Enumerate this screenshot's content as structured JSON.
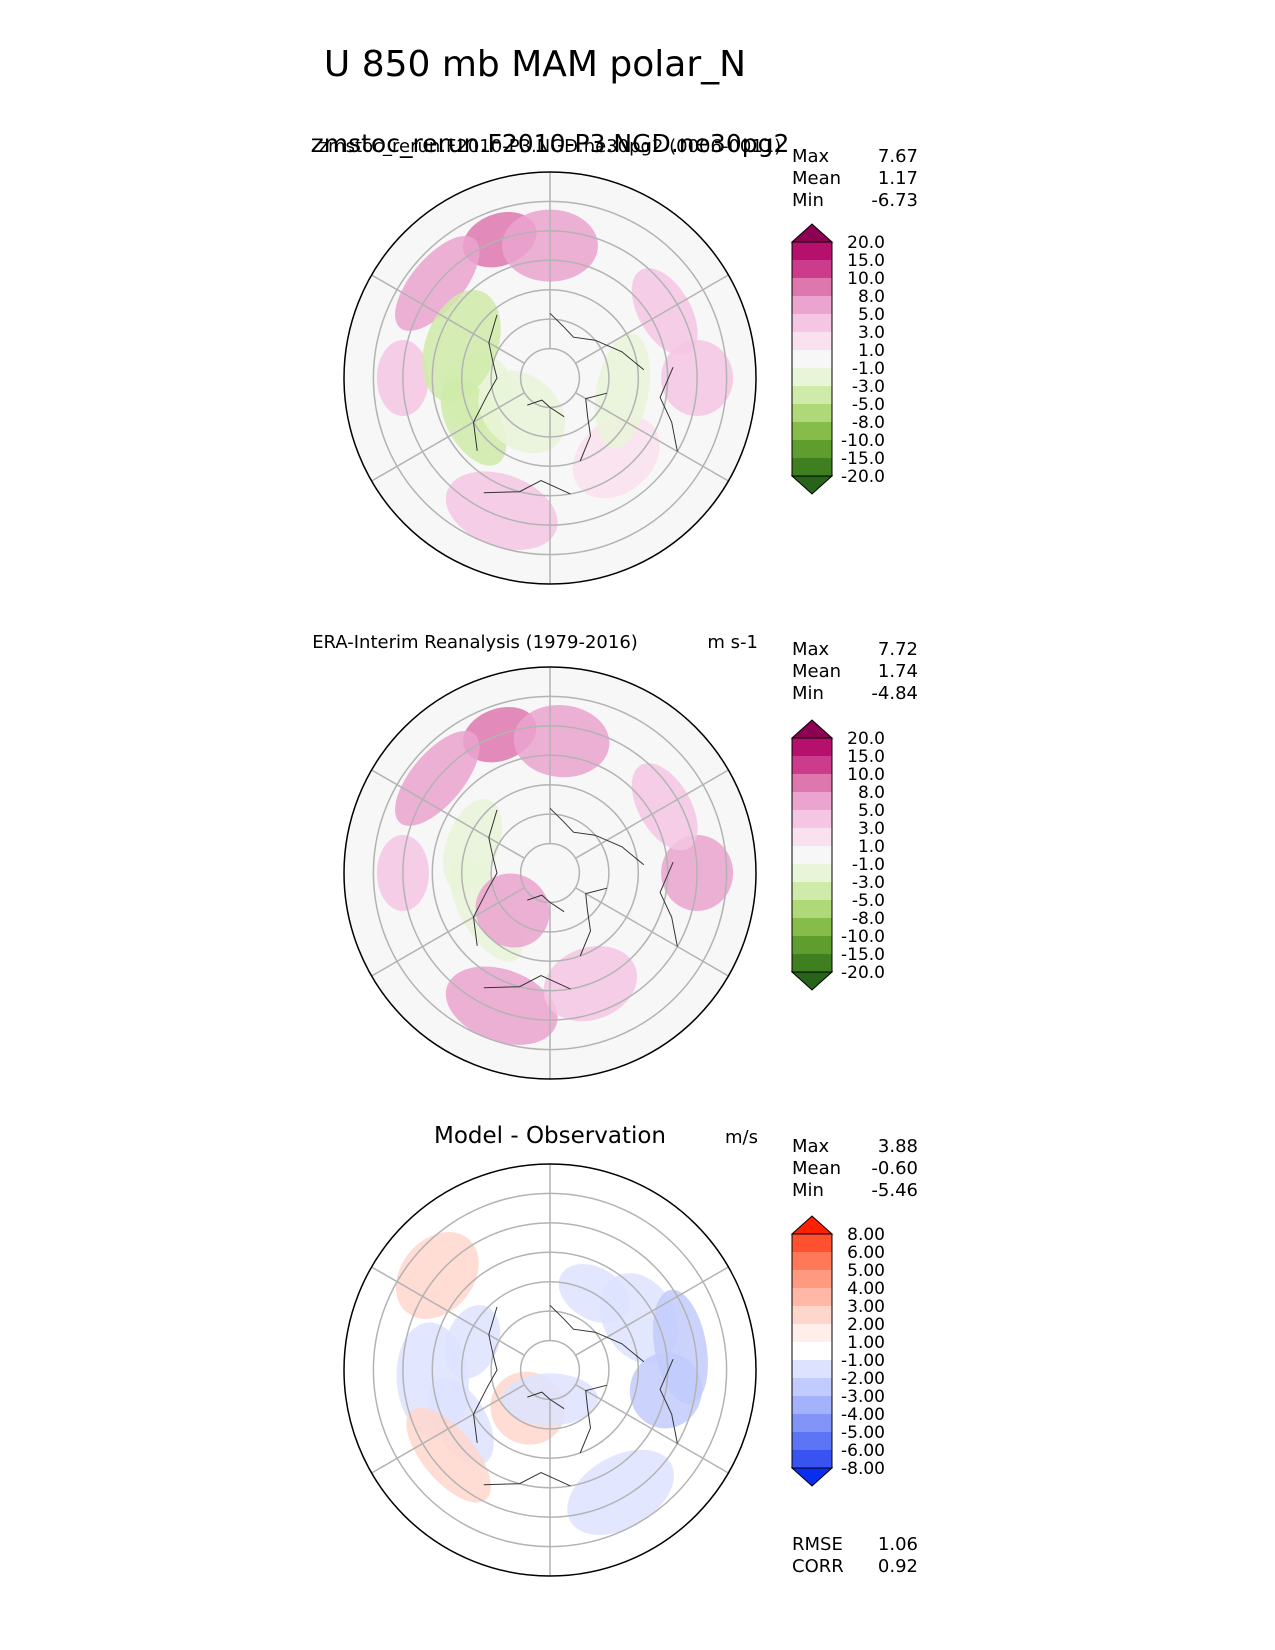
{
  "figure": {
    "title": "U 850 mb MAM polar_N"
  },
  "chart_data": [
    {
      "type": "heatmap",
      "panel": "test",
      "title": "zmstoc_rerun.F2010-P3.NGD.ne30pg2",
      "subtitle_overlap": "zmstoc_rerun.F2010-P3.NGD.ne30pg2 (0006-0011)",
      "units": "",
      "projection": "north-polar-stereographic",
      "stats": [
        {
          "label": "Max",
          "value": "7.67"
        },
        {
          "label": "Mean",
          "value": "1.17"
        },
        {
          "label": "Min",
          "value": "-6.73"
        }
      ],
      "colorbar": {
        "levels": [
          "20.0",
          "15.0",
          "10.0",
          "8.0",
          "5.0",
          "3.0",
          "1.0",
          "-1.0",
          "-3.0",
          "-5.0",
          "-8.0",
          "-10.0",
          "-15.0",
          "-20.0"
        ],
        "colors": [
          "#8e0152",
          "#b5106c",
          "#cc3c8c",
          "#de77ae",
          "#eba3cf",
          "#f4c6e3",
          "#fae1ef",
          "#f7f7f7",
          "#e9f5d8",
          "#cfeba9",
          "#afd978",
          "#86bd4a",
          "#5f9e2e",
          "#3f7f1f",
          "#276419"
        ]
      },
      "field": [
        {
          "lat": 40,
          "lon": 200,
          "value": 7.5,
          "color": "#de77ae"
        },
        {
          "lat": 45,
          "lon": 180,
          "value": 6.0,
          "color": "#eba3cf"
        },
        {
          "lat": 40,
          "lon": 230,
          "value": 6.5,
          "color": "#eba3cf"
        },
        {
          "lat": 40,
          "lon": 90,
          "value": 4.5,
          "color": "#f4c6e3"
        },
        {
          "lat": 45,
          "lon": 120,
          "value": 4.0,
          "color": "#f4c6e3"
        },
        {
          "lat": 42,
          "lon": 340,
          "value": 5.5,
          "color": "#f4c6e3"
        },
        {
          "lat": 40,
          "lon": 270,
          "value": 3.5,
          "color": "#f4c6e3"
        },
        {
          "lat": 55,
          "lon": 40,
          "value": 2.0,
          "color": "#fae1ef"
        },
        {
          "lat": 65,
          "lon": 80,
          "value": -2.0,
          "color": "#e9f5d8"
        },
        {
          "lat": 65,
          "lon": 280,
          "value": -2.5,
          "color": "#e9f5d8"
        },
        {
          "lat": 60,
          "lon": 300,
          "value": -4.0,
          "color": "#cfeba9"
        },
        {
          "lat": 58,
          "lon": 250,
          "value": -3.5,
          "color": "#cfeba9"
        },
        {
          "lat": 70,
          "lon": 160,
          "value": 0.0,
          "color": "#f7f7f7"
        },
        {
          "lat": 75,
          "lon": 320,
          "value": -1.5,
          "color": "#e9f5d8"
        }
      ]
    },
    {
      "type": "heatmap",
      "panel": "reference",
      "title": "ERA-Interim Reanalysis (1979-2016)",
      "units": "m s-1",
      "projection": "north-polar-stereographic",
      "stats": [
        {
          "label": "Max",
          "value": "7.72"
        },
        {
          "label": "Mean",
          "value": "1.74"
        },
        {
          "label": "Min",
          "value": "-4.84"
        }
      ],
      "colorbar": {
        "levels": [
          "20.0",
          "15.0",
          "10.0",
          "8.0",
          "5.0",
          "3.0",
          "1.0",
          "-1.0",
          "-3.0",
          "-5.0",
          "-8.0",
          "-10.0",
          "-15.0",
          "-20.0"
        ],
        "colors": [
          "#8e0152",
          "#b5106c",
          "#cc3c8c",
          "#de77ae",
          "#eba3cf",
          "#f4c6e3",
          "#fae1ef",
          "#f7f7f7",
          "#e9f5d8",
          "#cfeba9",
          "#afd978",
          "#86bd4a",
          "#5f9e2e",
          "#3f7f1f",
          "#276419"
        ]
      },
      "field": [
        {
          "lat": 40,
          "lon": 200,
          "value": 7.7,
          "color": "#de77ae"
        },
        {
          "lat": 45,
          "lon": 175,
          "value": 6.5,
          "color": "#eba3cf"
        },
        {
          "lat": 40,
          "lon": 230,
          "value": 6.5,
          "color": "#eba3cf"
        },
        {
          "lat": 40,
          "lon": 90,
          "value": 5.0,
          "color": "#eba3cf"
        },
        {
          "lat": 45,
          "lon": 120,
          "value": 4.5,
          "color": "#f4c6e3"
        },
        {
          "lat": 42,
          "lon": 340,
          "value": 6.0,
          "color": "#eba3cf"
        },
        {
          "lat": 40,
          "lon": 270,
          "value": 4.0,
          "color": "#f4c6e3"
        },
        {
          "lat": 50,
          "lon": 20,
          "value": 3.5,
          "color": "#f4c6e3"
        },
        {
          "lat": 65,
          "lon": 300,
          "value": -2.0,
          "color": "#e9f5d8"
        },
        {
          "lat": 72,
          "lon": 315,
          "value": 4.0,
          "color": "#eba3cf"
        },
        {
          "lat": 62,
          "lon": 250,
          "value": -1.5,
          "color": "#e9f5d8"
        },
        {
          "lat": 70,
          "lon": 160,
          "value": 0.5,
          "color": "#f7f7f7"
        }
      ]
    },
    {
      "type": "heatmap",
      "panel": "difference",
      "title": "Model - Observation",
      "units": "m/s",
      "projection": "north-polar-stereographic",
      "stats": [
        {
          "label": "Max",
          "value": "3.88"
        },
        {
          "label": "Mean",
          "value": "-0.60"
        },
        {
          "label": "Min",
          "value": "-5.46"
        }
      ],
      "extra_stats": [
        {
          "label": "RMSE",
          "value": "1.06"
        },
        {
          "label": "CORR",
          "value": "0.92"
        }
      ],
      "colorbar": {
        "levels": [
          "8.00",
          "6.00",
          "5.00",
          "4.00",
          "3.00",
          "2.00",
          "1.00",
          "-1.00",
          "-2.00",
          "-3.00",
          "-4.00",
          "-5.00",
          "-6.00",
          "-8.00"
        ],
        "colors": [
          "#ff2000",
          "#ff5030",
          "#ff7858",
          "#ff9a80",
          "#ffb8a6",
          "#ffd6cc",
          "#ffeeea",
          "#ffffff",
          "#dde3ff",
          "#c2cbfd",
          "#a4b1fb",
          "#8294f8",
          "#5d74f4",
          "#3853f0",
          "#0a2ef0"
        ]
      },
      "field": [
        {
          "lat": 60,
          "lon": 150,
          "value": -1.5,
          "color": "#dde3ff"
        },
        {
          "lat": 55,
          "lon": 120,
          "value": -1.5,
          "color": "#dde3ff"
        },
        {
          "lat": 45,
          "lon": 100,
          "value": -2.5,
          "color": "#c2cbfd"
        },
        {
          "lat": 50,
          "lon": 80,
          "value": -3.0,
          "color": "#c2cbfd"
        },
        {
          "lat": 55,
          "lon": 300,
          "value": -1.5,
          "color": "#dde3ff"
        },
        {
          "lat": 50,
          "lon": 275,
          "value": -2.0,
          "color": "#dde3ff"
        },
        {
          "lat": 62,
          "lon": 250,
          "value": -1.2,
          "color": "#dde3ff"
        },
        {
          "lat": 40,
          "lon": 230,
          "value": 1.5,
          "color": "#ffd6cc"
        },
        {
          "lat": 45,
          "lon": 310,
          "value": 1.5,
          "color": "#ffd6cc"
        },
        {
          "lat": 75,
          "lon": 330,
          "value": 1.5,
          "color": "#ffd6cc"
        },
        {
          "lat": 80,
          "lon": 0,
          "value": -1.2,
          "color": "#dde3ff"
        },
        {
          "lat": 42,
          "lon": 30,
          "value": -1.5,
          "color": "#dde3ff"
        }
      ]
    }
  ]
}
